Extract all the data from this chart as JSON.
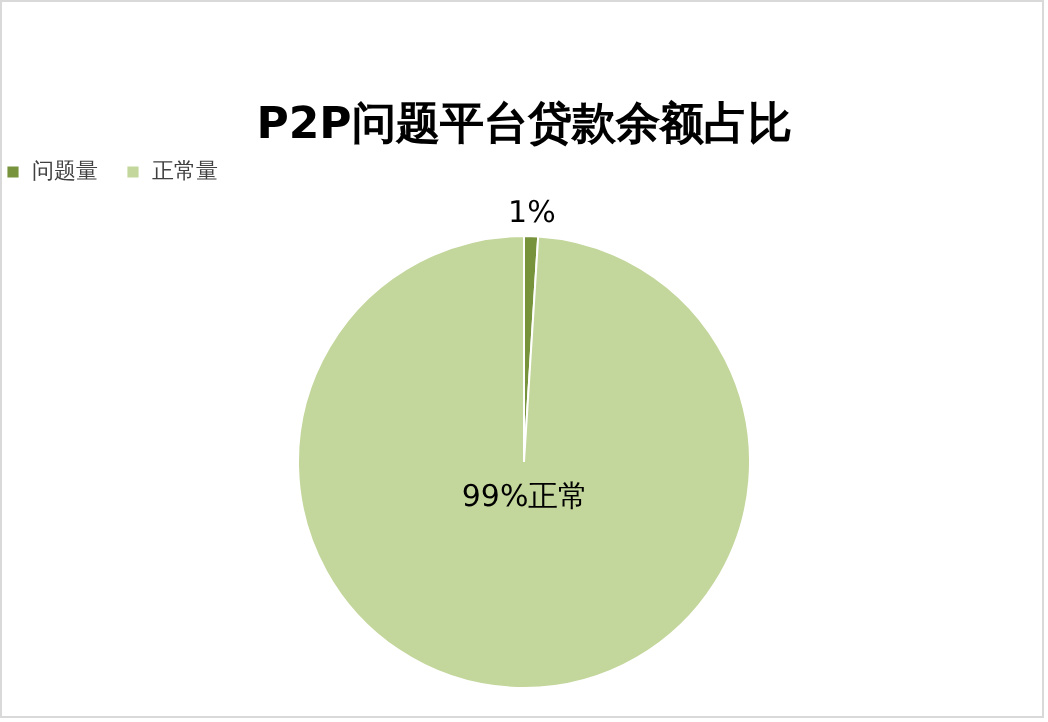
{
  "chart_data": {
    "type": "pie",
    "title": "P2P问题平台贷款余额占比",
    "categories": [
      "问题量",
      "正常量"
    ],
    "values": [
      1,
      99
    ],
    "colors": [
      "#77933c",
      "#c3d69b"
    ],
    "value_labels": [
      "1%",
      "99%正常"
    ],
    "legend": "top"
  }
}
